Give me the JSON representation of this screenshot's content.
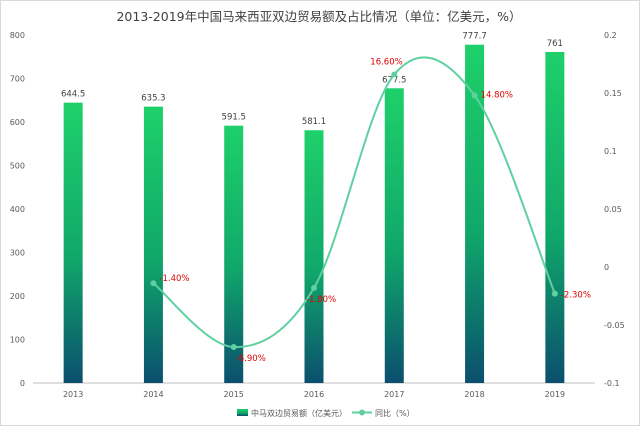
{
  "chart_data": {
    "type": "bar",
    "title": "2013-2019年中国马来西亚双边贸易额及占比情况（单位：亿美元，%）",
    "categories": [
      "2013",
      "2014",
      "2015",
      "2016",
      "2017",
      "2018",
      "2019"
    ],
    "series": [
      {
        "name": "中马双边贸易额（亿美元）",
        "type": "bar",
        "axis": "left",
        "values": [
          644.5,
          635.3,
          591.5,
          581.1,
          677.5,
          777.7,
          761
        ],
        "labels": [
          "644.5",
          "635.3",
          "591.5",
          "581.1",
          "677.5",
          "777.7",
          "761"
        ]
      },
      {
        "name": "同比（%）",
        "type": "line",
        "axis": "right",
        "values": [
          null,
          -0.014,
          -0.069,
          -0.018,
          0.166,
          0.148,
          -0.023
        ],
        "labels": [
          "",
          "-1.40%",
          "-6.90%",
          "-1.80%",
          "16.60%",
          "14.80%",
          "-2.30%"
        ]
      }
    ],
    "y_left": {
      "min": 0,
      "max": 800,
      "ticks": [
        "0",
        "100",
        "200",
        "300",
        "400",
        "500",
        "600",
        "700",
        "800"
      ]
    },
    "y_right": {
      "min": -0.1,
      "max": 0.2,
      "ticks": [
        "-0.1",
        "-0.05",
        "0",
        "0.05",
        "0.1",
        "0.15",
        "0.2"
      ]
    },
    "legend": [
      "中马双边贸易额（亿美元）",
      "同比（%）"
    ],
    "legend_position": "bottom",
    "colors": {
      "bar_top": "#1ed06a",
      "bar_bottom": "#0b4f6e",
      "line": "#5fd0a0",
      "pct_label": "#e00000"
    }
  }
}
